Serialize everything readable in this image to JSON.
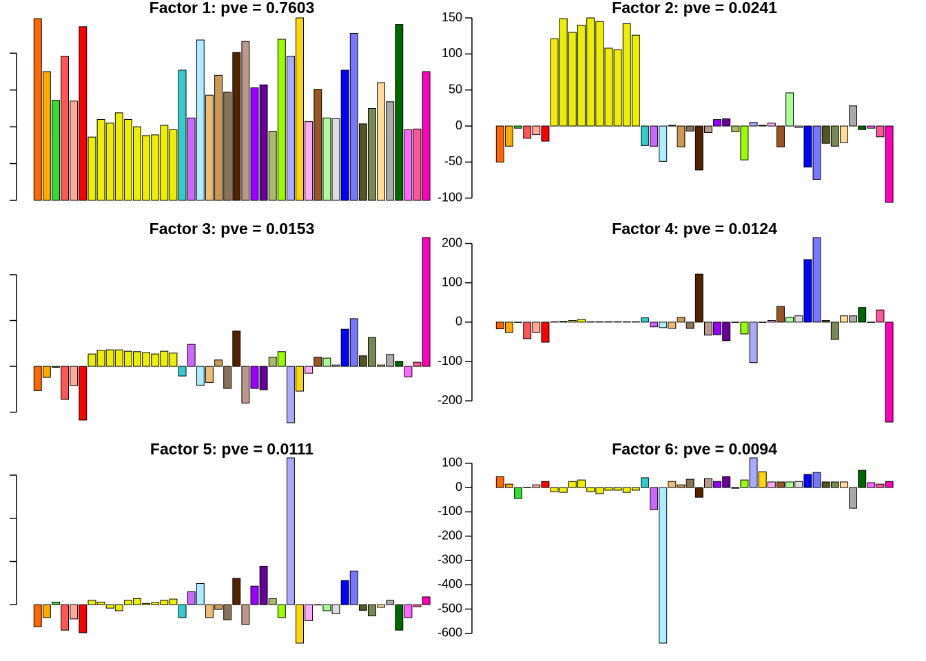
{
  "chart_data": [
    {
      "type": "bar",
      "title": "Factor 1: pve = 0.7603",
      "values": [
        247,
        175,
        136,
        196,
        135,
        236,
        86,
        110,
        105,
        119,
        110,
        100,
        88,
        89,
        102,
        96,
        177,
        112,
        218,
        143,
        170,
        147,
        201,
        216,
        153,
        157,
        94,
        219,
        196,
        248,
        107,
        151,
        112,
        111,
        177,
        227,
        104,
        125,
        160,
        134,
        239,
        96,
        97,
        175
      ],
      "colors": [
        "#FF6600",
        "#FFAA00",
        "#33DD33",
        "#FF5555",
        "#FFAA99",
        "#FF0000",
        "#EEEE00",
        "#EEEE00",
        "#EEEE00",
        "#EEEE00",
        "#EEEE00",
        "#EEEE00",
        "#EEEE00",
        "#EEEE00",
        "#EEEE00",
        "#EEEE00",
        "#33CCCC",
        "#CC66FF",
        "#AAEEFF",
        "#EEBB77",
        "#CC9955",
        "#8B7355",
        "#552200",
        "#BB9988",
        "#9900FF",
        "#660099",
        "#AABB66",
        "#99FF00",
        "#AAAAFF",
        "#FFD700",
        "#FFAAFF",
        "#995522",
        "#AAFF99",
        "#DDDDDD",
        "#0000FF",
        "#7777FF",
        "#555522",
        "#778855",
        "#FFDD99",
        "#AAAAAA",
        "#006600",
        "#FF66FF",
        "#FF5599",
        "#FF00BB"
      ],
      "ylim": [
        0,
        248
      ],
      "yticks": [
        0,
        50,
        100,
        150,
        200
      ]
    },
    {
      "type": "bar",
      "title": "Factor 2: pve = 0.0241",
      "values": [
        -50,
        -28,
        -3,
        -17,
        -12,
        -21,
        121,
        149,
        130,
        140,
        150,
        145,
        108,
        106,
        142,
        126,
        -27,
        -28,
        -49,
        1,
        -29,
        -7,
        -61,
        -9,
        9,
        10,
        -8,
        -47,
        5,
        1,
        4,
        -29,
        46,
        -2,
        -57,
        -74,
        -24,
        -28,
        -23,
        28,
        -5,
        -3,
        -15,
        -106
      ],
      "colors": [
        "#FF6600",
        "#FFAA00",
        "#33DD33",
        "#FF5555",
        "#FFAA99",
        "#FF0000",
        "#EEEE00",
        "#EEEE00",
        "#EEEE00",
        "#EEEE00",
        "#EEEE00",
        "#EEEE00",
        "#EEEE00",
        "#EEEE00",
        "#EEEE00",
        "#EEEE00",
        "#33CCCC",
        "#CC66FF",
        "#AAEEFF",
        "#EEBB77",
        "#CC9955",
        "#8B7355",
        "#552200",
        "#BB9988",
        "#9900FF",
        "#660099",
        "#AABB66",
        "#99FF00",
        "#AAAAFF",
        "#FFD700",
        "#FFAAFF",
        "#995522",
        "#AAFF99",
        "#DDDDDD",
        "#0000FF",
        "#7777FF",
        "#555522",
        "#778855",
        "#FFDD99",
        "#AAAAAA",
        "#006600",
        "#FF66FF",
        "#FF5599",
        "#FF00BB"
      ],
      "ylim": [
        -106,
        150
      ],
      "yticks": [
        -100,
        -50,
        0,
        50,
        100,
        150
      ]
    },
    {
      "type": "bar",
      "title": "Factor 3: pve = 0.0153",
      "values": [
        -53,
        -24,
        -2,
        -72,
        -42,
        -117,
        27,
        35,
        36,
        36,
        33,
        32,
        30,
        27,
        33,
        29,
        -21,
        48,
        -41,
        -35,
        14,
        -48,
        77,
        -80,
        -48,
        -51,
        20,
        32,
        -123,
        -54,
        -15,
        20,
        18,
        3,
        81,
        104,
        23,
        63,
        3,
        26,
        11,
        -23,
        9,
        281
      ],
      "colors": [
        "#FF6600",
        "#FFAA00",
        "#33DD33",
        "#FF5555",
        "#FFAA99",
        "#FF0000",
        "#EEEE00",
        "#EEEE00",
        "#EEEE00",
        "#EEEE00",
        "#EEEE00",
        "#EEEE00",
        "#EEEE00",
        "#EEEE00",
        "#EEEE00",
        "#EEEE00",
        "#33CCCC",
        "#CC66FF",
        "#AAEEFF",
        "#EEBB77",
        "#CC9955",
        "#8B7355",
        "#552200",
        "#BB9988",
        "#9900FF",
        "#660099",
        "#AABB66",
        "#99FF00",
        "#AAAAFF",
        "#FFD700",
        "#FFAAFF",
        "#995522",
        "#AAFF99",
        "#DDDDDD",
        "#0000FF",
        "#7777FF",
        "#555522",
        "#778855",
        "#FFDD99",
        "#AAAAAA",
        "#006600",
        "#FF66FF",
        "#FF5599",
        "#FF00BB"
      ],
      "ylim": [
        -123,
        281
      ],
      "yticks": [
        -100,
        0,
        100,
        200
      ]
    },
    {
      "type": "bar",
      "title": "Factor 4: pve = 0.0124",
      "values": [
        -17,
        -26,
        0,
        -42,
        -26,
        -51,
        1,
        2,
        4,
        7,
        1,
        1,
        1,
        1,
        1,
        1,
        11,
        -12,
        -14,
        -16,
        12,
        -16,
        122,
        -33,
        -32,
        -47,
        0,
        -30,
        -103,
        0,
        4,
        40,
        12,
        16,
        159,
        215,
        4,
        -44,
        16,
        16,
        37,
        0,
        31,
        -254
      ],
      "colors": [
        "#FF6600",
        "#FFAA00",
        "#33DD33",
        "#FF5555",
        "#FFAA99",
        "#FF0000",
        "#EEEE00",
        "#EEEE00",
        "#EEEE00",
        "#EEEE00",
        "#EEEE00",
        "#EEEE00",
        "#EEEE00",
        "#EEEE00",
        "#EEEE00",
        "#EEEE00",
        "#33CCCC",
        "#CC66FF",
        "#AAEEFF",
        "#EEBB77",
        "#CC9955",
        "#8B7355",
        "#552200",
        "#BB9988",
        "#9900FF",
        "#660099",
        "#AABB66",
        "#99FF00",
        "#AAAAFF",
        "#FFD700",
        "#FFAAFF",
        "#995522",
        "#AAFF99",
        "#DDDDDD",
        "#0000FF",
        "#7777FF",
        "#555522",
        "#778855",
        "#FFDD99",
        "#AAAAAA",
        "#006600",
        "#FF66FF",
        "#FF5599",
        "#FF00BB"
      ],
      "ylim": [
        -254,
        215
      ],
      "yticks": [
        -200,
        -100,
        0,
        100,
        200
      ]
    },
    {
      "type": "bar",
      "title": "Factor 5: pve = 0.0111",
      "values": [
        -51,
        -30,
        6,
        -59,
        -33,
        -65,
        10,
        6,
        -8,
        -14,
        10,
        14,
        3,
        5,
        10,
        13,
        -30,
        30,
        49,
        -30,
        -11,
        -35,
        61,
        -46,
        43,
        89,
        14,
        -30,
        340,
        -89,
        -37,
        0,
        -14,
        -21,
        56,
        78,
        -13,
        -26,
        -6,
        10,
        -59,
        -30,
        -5,
        18
      ],
      "colors": [
        "#FF6600",
        "#FFAA00",
        "#33DD33",
        "#FF5555",
        "#FFAA99",
        "#FF0000",
        "#EEEE00",
        "#EEEE00",
        "#EEEE00",
        "#EEEE00",
        "#EEEE00",
        "#EEEE00",
        "#EEEE00",
        "#EEEE00",
        "#EEEE00",
        "#EEEE00",
        "#33CCCC",
        "#CC66FF",
        "#AAEEFF",
        "#EEBB77",
        "#CC9955",
        "#8B7355",
        "#552200",
        "#BB9988",
        "#9900FF",
        "#660099",
        "#AABB66",
        "#99FF00",
        "#AAAAFF",
        "#FFD700",
        "#FFAAFF",
        "#995522",
        "#AAFF99",
        "#DDDDDD",
        "#0000FF",
        "#7777FF",
        "#555522",
        "#778855",
        "#FFDD99",
        "#AAAAAA",
        "#006600",
        "#FF66FF",
        "#FF5599",
        "#FF00BB"
      ],
      "ylim": [
        -89,
        340
      ],
      "yticks": [
        0,
        100,
        200,
        300
      ]
    },
    {
      "type": "bar",
      "title": "Factor 6: pve = 0.0094",
      "values": [
        45,
        14,
        -45,
        1,
        11,
        25,
        -17,
        -20,
        25,
        31,
        -17,
        -25,
        -11,
        -11,
        -20,
        -11,
        40,
        -91,
        -640,
        25,
        11,
        34,
        -40,
        37,
        25,
        45,
        -3,
        31,
        122,
        65,
        23,
        23,
        23,
        25,
        54,
        62,
        23,
        23,
        23,
        -85,
        71,
        20,
        14,
        25
      ],
      "colors": [
        "#FF6600",
        "#FFAA00",
        "#33DD33",
        "#FF5555",
        "#FFAA99",
        "#FF0000",
        "#EEEE00",
        "#EEEE00",
        "#EEEE00",
        "#EEEE00",
        "#EEEE00",
        "#EEEE00",
        "#EEEE00",
        "#EEEE00",
        "#EEEE00",
        "#EEEE00",
        "#33CCCC",
        "#CC66FF",
        "#AAEEFF",
        "#EEBB77",
        "#CC9955",
        "#8B7355",
        "#552200",
        "#BB9988",
        "#9900FF",
        "#660099",
        "#AABB66",
        "#99FF00",
        "#AAAAFF",
        "#FFD700",
        "#FFAAFF",
        "#995522",
        "#AAFF99",
        "#DDDDDD",
        "#0000FF",
        "#7777FF",
        "#555522",
        "#778855",
        "#FFDD99",
        "#AAAAAA",
        "#006600",
        "#FF66FF",
        "#FF5599",
        "#FF00BB"
      ],
      "ylim": [
        -640,
        122
      ],
      "yticks": [
        -600,
        -500,
        -400,
        -300,
        -200,
        -100,
        0,
        100
      ]
    }
  ]
}
